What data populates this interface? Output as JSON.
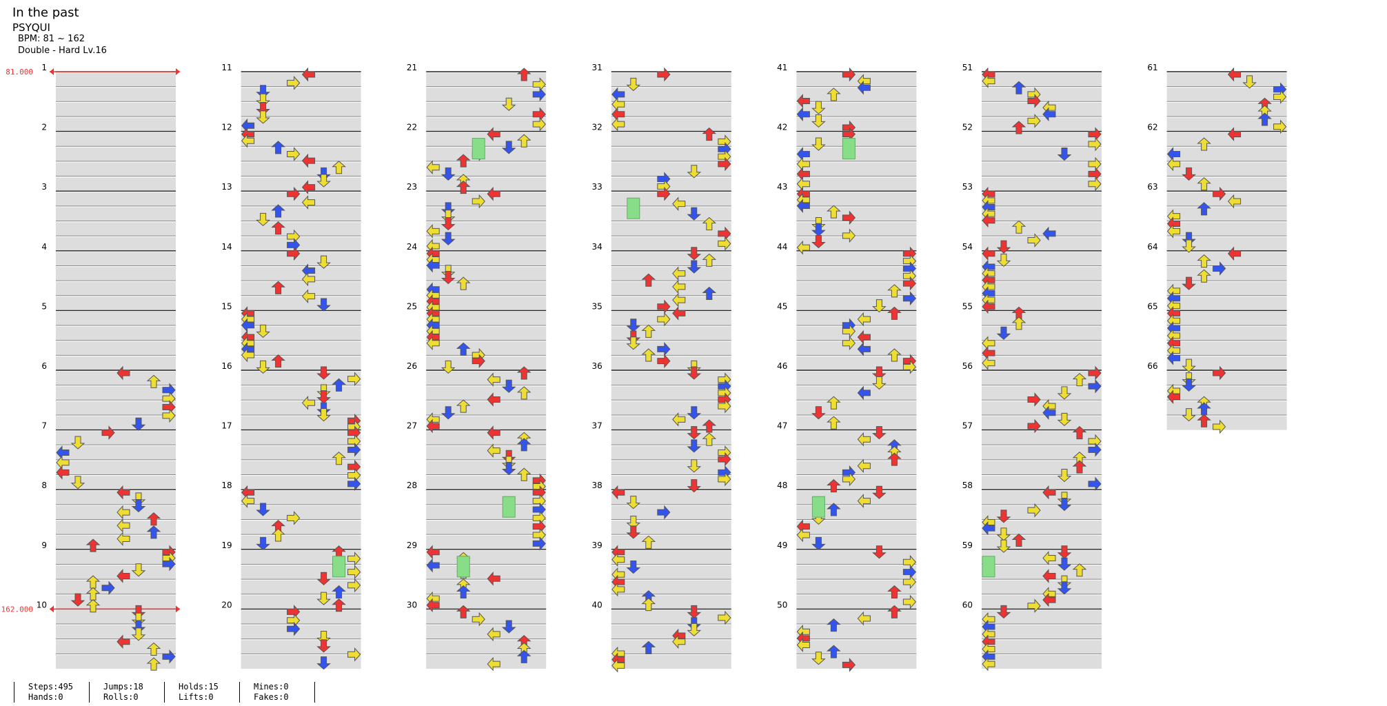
{
  "header": {
    "title": "In the past",
    "artist": "PSYQUI",
    "bpm": "BPM: 81 ~ 162",
    "difficulty": "Double - Hard  Lv.16"
  },
  "bpm_markers": [
    {
      "measure": 1,
      "label": "81.000"
    },
    {
      "measure": 10,
      "label": "162.000"
    }
  ],
  "measures": {
    "first": 1,
    "last": 66,
    "per_column": 10
  },
  "stats": [
    [
      "Steps:495",
      "Hands:0"
    ],
    [
      "Jumps:18",
      "Rolls:0"
    ],
    [
      "Holds:15",
      "Lifts:0"
    ],
    [
      "Mines:0",
      "Fakes:0"
    ]
  ],
  "colors": {
    "red_4th": "#ee3333",
    "blue_8th": "#3355ee",
    "yellow_16th": "#eedd33",
    "hold": "#88dd88",
    "bpm_line": "#ee3333",
    "stripe": "#dddddd"
  },
  "icons": {
    "left": "arrow-left-icon",
    "down": "arrow-down-icon",
    "up": "arrow-up-icon",
    "right": "arrow-right-icon",
    "hold": "hold-body-icon"
  }
}
